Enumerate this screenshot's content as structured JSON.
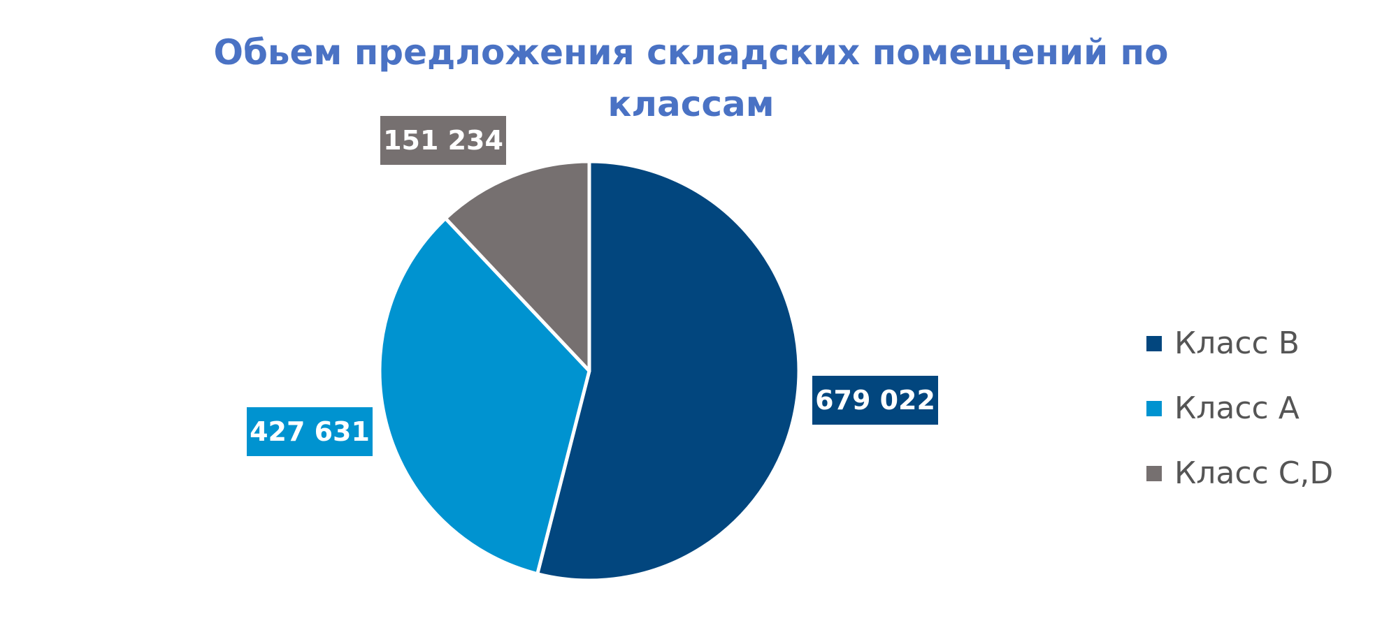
{
  "chart_data": {
    "type": "pie",
    "title_lines": [
      "Обьем предложения складских помещений по",
      "классам"
    ],
    "slices": [
      {
        "name": "Класс B",
        "value": 679022,
        "label": "679 022",
        "color": "#02467e"
      },
      {
        "name": "Класс A",
        "value": 427631,
        "label": "427 631",
        "color": "#0093d0"
      },
      {
        "name": "Класс C,D",
        "value": 151234,
        "label": "151 234",
        "color": "#767070"
      }
    ],
    "start_angle_deg": 0,
    "direction": "clockwise",
    "legend_position": "right"
  }
}
